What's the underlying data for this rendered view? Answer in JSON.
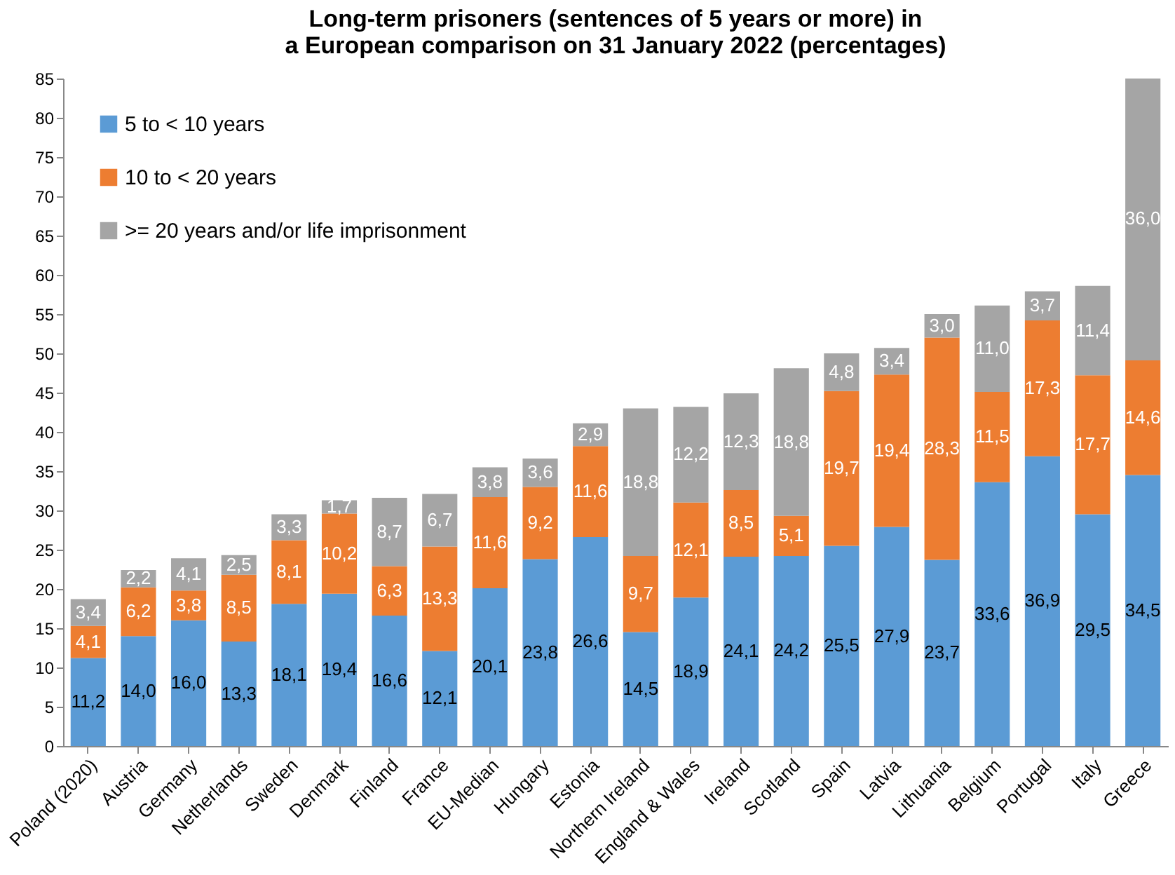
{
  "chart_data": {
    "type": "bar",
    "stacked": true,
    "title": "Long-term prisoners (sentences of 5 years or more) in a European comparison on 31 January 2022 (percentages)",
    "categories": [
      "Poland (2020)",
      "Austria",
      "Germany",
      "Netherlands",
      "Sweden",
      "Denmark",
      "Finland",
      "France",
      "EU-Median",
      "Hungary",
      "Estonia",
      "Northern Ireland",
      "England & Wales",
      "Ireland",
      "Scotland",
      "Spain",
      "Latvia",
      "Lithuania",
      "Belgium",
      "Portugal",
      "Italy",
      "Greece"
    ],
    "series": [
      {
        "name": "5 to < 10 years",
        "color": "#5b9bd5",
        "values": [
          11.2,
          14.0,
          16.0,
          13.3,
          18.1,
          19.4,
          16.6,
          12.1,
          20.1,
          23.8,
          26.6,
          14.5,
          18.9,
          24.1,
          24.2,
          25.5,
          27.9,
          23.7,
          33.6,
          36.9,
          29.5,
          34.5
        ],
        "value_labels": [
          "11,2",
          "14,0",
          "16,0",
          "13,3",
          "18,1",
          "19,4",
          "16,6",
          "12,1",
          "20,1",
          "23,8",
          "26,6",
          "14,5",
          "18,9",
          "24,1",
          "24,2",
          "25,5",
          "27,9",
          "23,7",
          "33,6",
          "36,9",
          "29,5",
          "34,5"
        ]
      },
      {
        "name": "10 to < 20 years",
        "color": "#ed7d31",
        "values": [
          4.1,
          6.2,
          3.8,
          8.5,
          8.1,
          10.2,
          6.3,
          13.3,
          11.6,
          9.2,
          11.6,
          9.7,
          12.1,
          8.5,
          5.1,
          19.7,
          19.4,
          28.3,
          11.5,
          17.3,
          17.7,
          14.6
        ],
        "value_labels": [
          "4,1",
          "6,2",
          "3,8",
          "8,5",
          "8,1",
          "10,2",
          "6,3",
          "13,3",
          "11,6",
          "9,2",
          "11,6",
          "9,7",
          "12,1",
          "8,5",
          "5,1",
          "19,7",
          "19,4",
          "28,3",
          "11,5",
          "17,3",
          "17,7",
          "14,6"
        ]
      },
      {
        "name": ">= 20 years and/or life imprisonment",
        "color": "#a5a5a5",
        "values": [
          3.4,
          2.2,
          4.1,
          2.5,
          3.3,
          1.7,
          8.7,
          6.7,
          3.8,
          3.6,
          2.9,
          18.8,
          12.2,
          12.3,
          18.8,
          4.8,
          3.4,
          3.0,
          11.0,
          3.7,
          11.4,
          36.0
        ],
        "value_labels": [
          "3,4",
          "2,2",
          "4,1",
          "2,5",
          "3,3",
          "1,7",
          "8,7",
          "6,7",
          "3,8",
          "3,6",
          "2,9",
          "18,8",
          "12,2",
          "12,3",
          "18,8",
          "4,8",
          "3,4",
          "3,0",
          "11,0",
          "3,7",
          "11,4",
          "36,0"
        ]
      }
    ],
    "ylim": [
      0,
      85
    ],
    "yticks": [
      0,
      5,
      10,
      15,
      20,
      25,
      30,
      35,
      40,
      45,
      50,
      55,
      60,
      65,
      70,
      75,
      80,
      85
    ],
    "grid": false,
    "legend": "top left"
  }
}
